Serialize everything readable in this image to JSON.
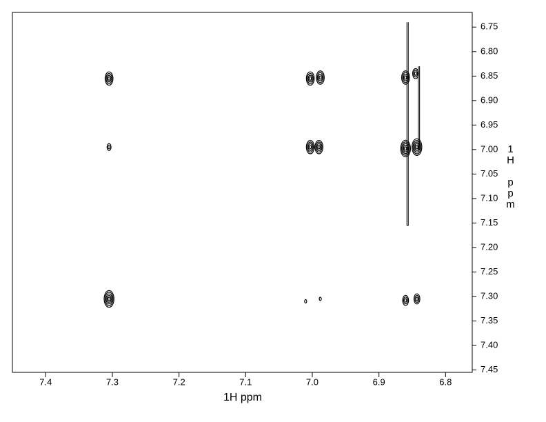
{
  "chart_data": {
    "type": "contour",
    "x_label": "1H ppm",
    "y_label": "1H ppm",
    "xlim": [
      7.45,
      6.76
    ],
    "ylim": [
      6.72,
      7.455
    ],
    "xticks": [
      7.4,
      7.3,
      7.2,
      7.1,
      {
        "value": 7.0,
        "label": "7.0"
      },
      6.9,
      6.8
    ],
    "yticks": [
      6.75,
      {
        "value": 6.8,
        "label": "6.80"
      },
      6.85,
      {
        "value": 6.9,
        "label": "6.90"
      },
      6.95,
      {
        "value": 7.0,
        "label": "7.00"
      },
      7.05,
      {
        "value": 7.1,
        "label": "7.10"
      },
      7.15,
      {
        "value": 7.2,
        "label": "7.20"
      },
      7.25,
      {
        "value": 7.3,
        "label": "7.30"
      },
      7.35,
      {
        "value": 7.4,
        "label": "7.40"
      },
      7.45
    ],
    "color": "#000000",
    "x": [
      7.305,
      7.003,
      6.988,
      6.86,
      6.845,
      7.305,
      7.003,
      6.99,
      6.86,
      6.843,
      7.305,
      7.01,
      6.988,
      6.86,
      6.843
    ],
    "values": [
      6.855,
      6.855,
      6.853,
      6.853,
      6.845,
      6.995,
      6.995,
      6.995,
      6.998,
      6.995,
      7.305,
      7.31,
      7.305,
      7.308,
      7.305
    ],
    "sizes": [
      4,
      4,
      4,
      4,
      3,
      2,
      4,
      4,
      5,
      5,
      5,
      1,
      1,
      3,
      3
    ],
    "ridges": [
      {
        "x": 6.857,
        "y": [
          6.74,
          7.155
        ]
      },
      {
        "x": 6.84,
        "y": [
          6.83,
          7.0
        ]
      }
    ]
  }
}
